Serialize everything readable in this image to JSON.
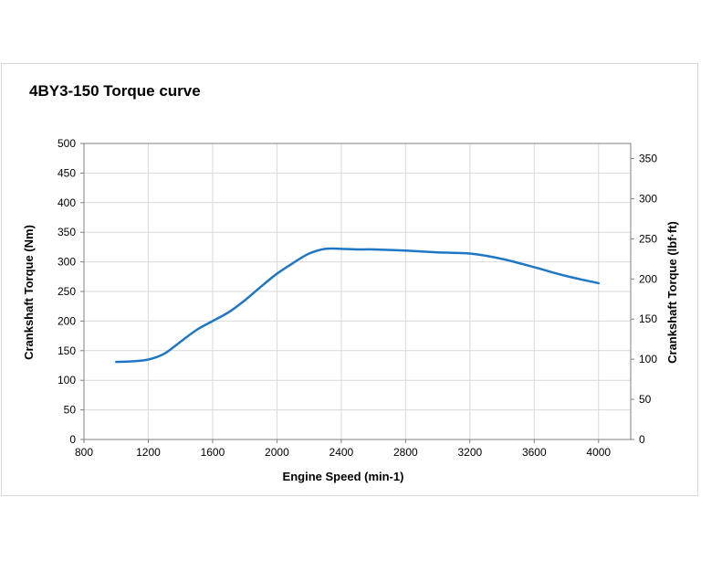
{
  "chart_data": {
    "type": "line",
    "title": "4BY3-150 Torque curve",
    "xlabel": "Engine Speed (min-1)",
    "ylabel": "Crankshaft Torque (Nm)",
    "ylabel_right": "Crankshaft Torque (lbf·ft)",
    "xlim": [
      800,
      4200
    ],
    "ylim": [
      0,
      500
    ],
    "ylim_right": [
      0,
      368.8
    ],
    "x_ticks": [
      800,
      1200,
      1600,
      2000,
      2400,
      2800,
      3200,
      3600,
      4000
    ],
    "y_ticks": [
      0,
      50,
      100,
      150,
      200,
      250,
      300,
      350,
      400,
      450,
      500
    ],
    "y_ticks_right": [
      0,
      50,
      100,
      150,
      200,
      250,
      300,
      350
    ],
    "grid": true,
    "line_color": "#1f77c4",
    "series": [
      {
        "x": [
          1000,
          1100,
          1200,
          1300,
          1400,
          1500,
          1600,
          1700,
          1800,
          1900,
          2000,
          2100,
          2200,
          2300,
          2400,
          2500,
          2600,
          2800,
          3000,
          3200,
          3400,
          3600,
          3800,
          4000
        ],
        "values": [
          131,
          132,
          135,
          145,
          165,
          185,
          200,
          215,
          235,
          258,
          280,
          298,
          314,
          322,
          322,
          321,
          321,
          319,
          316,
          314,
          305,
          291,
          276,
          264
        ]
      }
    ]
  }
}
